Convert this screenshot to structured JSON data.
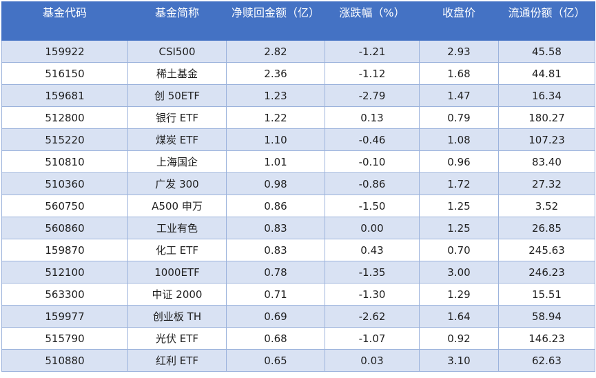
{
  "table": {
    "headers": [
      "基金代码",
      "基金简称",
      "净赎回金额（亿）",
      "涨跌幅（%）",
      "收盘价",
      "流通份额（亿）"
    ],
    "rows": [
      [
        "159922",
        "CSI500",
        "2.82",
        "-1.21",
        "2.93",
        "45.58"
      ],
      [
        "516150",
        "稀土基金",
        "2.36",
        "-1.12",
        "1.68",
        "44.81"
      ],
      [
        "159681",
        "创 50ETF",
        "1.23",
        "-2.79",
        "1.47",
        "16.34"
      ],
      [
        "512800",
        "银行 ETF",
        "1.22",
        "0.13",
        "0.79",
        "180.27"
      ],
      [
        "515220",
        "煤炭 ETF",
        "1.10",
        "-0.46",
        "1.08",
        "107.23"
      ],
      [
        "510810",
        "上海国企",
        "1.01",
        "-0.10",
        "0.96",
        "83.40"
      ],
      [
        "510360",
        "广发 300",
        "0.98",
        "-0.86",
        "1.72",
        "27.32"
      ],
      [
        "560750",
        "A500 申万",
        "0.86",
        "-1.50",
        "1.25",
        "3.52"
      ],
      [
        "560860",
        "工业有色",
        "0.83",
        "0.00",
        "1.25",
        "26.85"
      ],
      [
        "159870",
        "化工 ETF",
        "0.83",
        "0.43",
        "0.70",
        "245.63"
      ],
      [
        "512100",
        "1000ETF",
        "0.78",
        "-1.35",
        "3.00",
        "246.23"
      ],
      [
        "563300",
        "中证 2000",
        "0.71",
        "-1.30",
        "1.29",
        "15.51"
      ],
      [
        "159977",
        "创业板 TH",
        "0.69",
        "-2.62",
        "1.64",
        "58.94"
      ],
      [
        "515790",
        "光伏 ETF",
        "0.68",
        "-1.07",
        "0.92",
        "146.23"
      ],
      [
        "510880",
        "红利 ETF",
        "0.65",
        "0.03",
        "3.10",
        "62.63"
      ]
    ]
  },
  "colors": {
    "header_bg": "#4472c4",
    "band_bg": "#d9e2f3",
    "border": "#9cb3dc"
  }
}
